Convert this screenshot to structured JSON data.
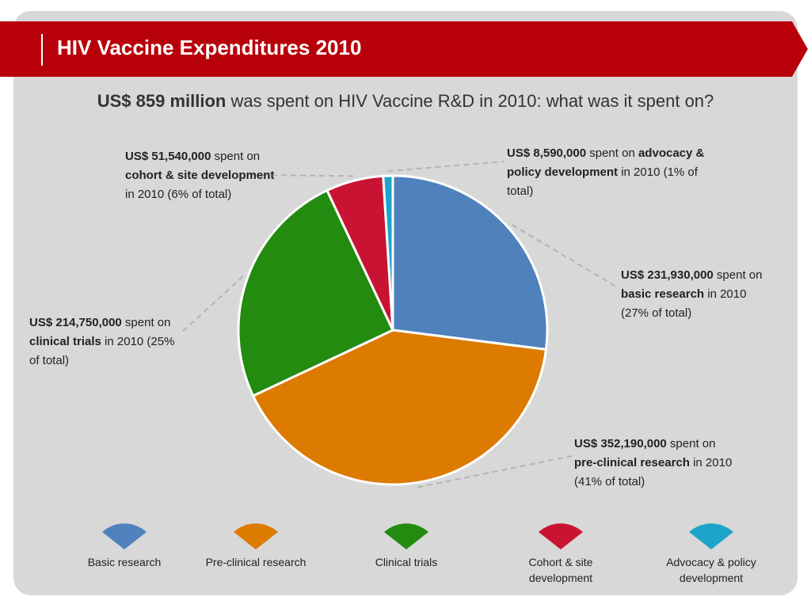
{
  "title": "HIV Vaccine Expenditures 2010",
  "subtitle": {
    "bold": "US$ 859 million",
    "rest": " was spent on HIV Vaccine R&D in 2010: what was it spent on?"
  },
  "colors": {
    "title_bar": "#b8000a",
    "panel": "#d8d8d8",
    "basic_research": "#4f81bd",
    "pre_clinical": "#dd7a00",
    "clinical_trials": "#228b10",
    "cohort_site": "#c81432",
    "advocacy_policy": "#1ea4c8"
  },
  "chart_data": {
    "type": "pie",
    "total_label": "US$ 859 million",
    "slices": [
      {
        "key": "basic_research",
        "value": 231930000,
        "percent": 27
      },
      {
        "key": "pre_clinical",
        "value": 352190000,
        "percent": 41
      },
      {
        "key": "clinical_trials",
        "value": 214750000,
        "percent": 25
      },
      {
        "key": "cohort_site",
        "value": 51540000,
        "percent": 6
      },
      {
        "key": "advocacy_policy",
        "value": 8590000,
        "percent": 1
      }
    ]
  },
  "callouts": {
    "basic_research": {
      "amount": "US$ 231,930,000",
      "pre": " spent on ",
      "label": "basic research",
      "post": " in 2010 (27% of total)"
    },
    "pre_clinical": {
      "amount": "US$ 352,190,000",
      "pre": " spent on ",
      "label": "pre-clinical research",
      "post": " in 2010 (41% of total)"
    },
    "clinical_trials": {
      "amount": "US$ 214,750,000",
      "pre": " spent on ",
      "label": "clinical trials",
      "post": " in 2010 (25% of total)"
    },
    "cohort_site": {
      "amount": "US$ 51,540,000",
      "pre": " spent on ",
      "label": "cohort & site development",
      "post": " in 2010 (6% of total)"
    },
    "advocacy_policy": {
      "amount": "US$ 8,590,000",
      "pre": " spent on ",
      "label": "advocacy & policy development",
      "post": " in 2010 (1% of total)"
    }
  },
  "legend": [
    {
      "key": "basic_research",
      "line1": "Basic research",
      "line2": ""
    },
    {
      "key": "pre_clinical",
      "line1": "Pre-clinical research",
      "line2": ""
    },
    {
      "key": "clinical_trials",
      "line1": "Clinical trials",
      "line2": ""
    },
    {
      "key": "cohort_site",
      "line1": "Cohort & site",
      "line2": "development"
    },
    {
      "key": "advocacy_policy",
      "line1": "Advocacy & policy",
      "line2": "development"
    }
  ]
}
